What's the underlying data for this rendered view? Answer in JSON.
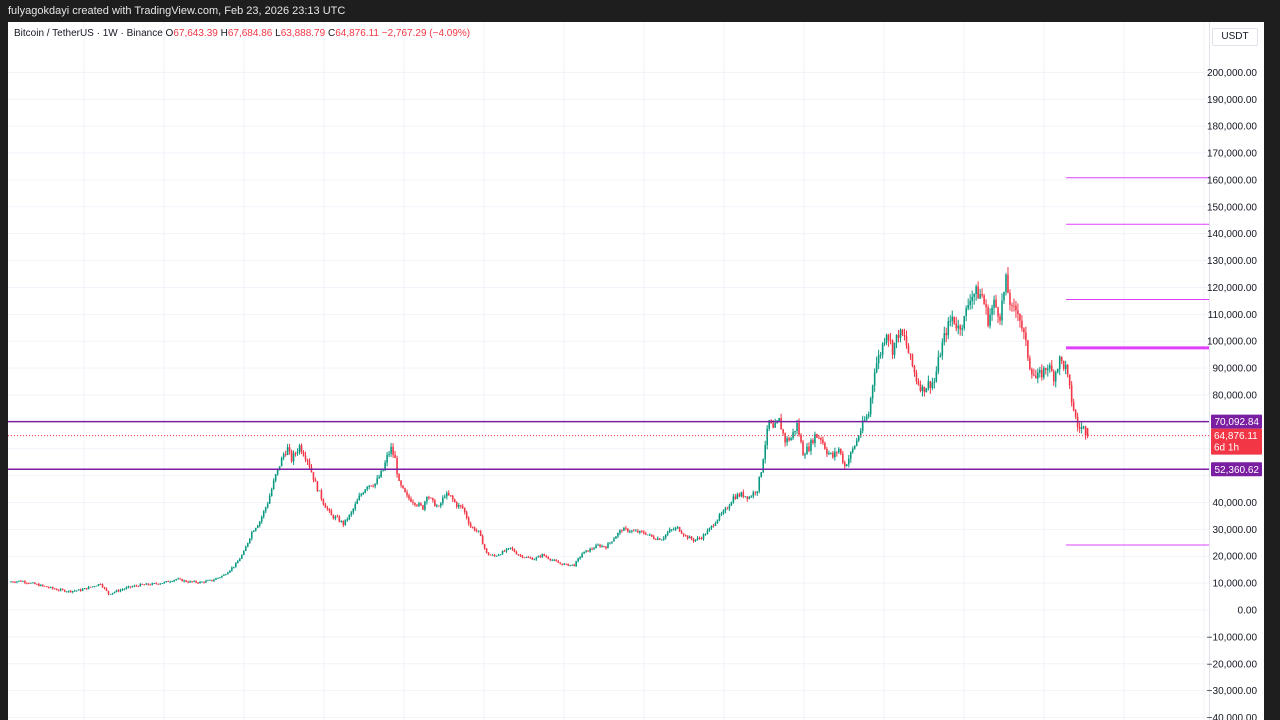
{
  "header": {
    "caption": "fulyagokdayi created with TradingView.com, Feb 23, 2026 23:13 UTC"
  },
  "legend": {
    "symbol": "Bitcoin / TetherUS · 1W · Binance",
    "open_label": "O",
    "open": "67,643.39",
    "high_label": "H",
    "high": "67,684.86",
    "low_label": "L",
    "low": "63,888.79",
    "close_label": "C",
    "close": "64,876.11",
    "change": "−2,767.29 (−4.09%)"
  },
  "axis": {
    "currency": "USDT"
  },
  "colors": {
    "up": "#089981",
    "down": "#f23645",
    "level_line": "#7b1fa2",
    "target_line": "#e040fb",
    "grid": "#f0f3fa",
    "price_line": "#f23645"
  },
  "chart_data": {
    "type": "candlestick",
    "symbol": "Bitcoin / TetherUS",
    "interval": "1W",
    "exchange": "Binance",
    "ylim": [
      -40000,
      210000
    ],
    "y_ticks": [
      "200,000.00",
      "190,000.00",
      "180,000.00",
      "170,000.00",
      "160,000.00",
      "150,000.00",
      "140,000.00",
      "130,000.00",
      "120,000.00",
      "110,000.00",
      "100,000.00",
      "90,000.00",
      "80,000.00",
      "60,000.00",
      "40,000.00",
      "30,000.00",
      "20,000.00",
      "10,000.00",
      "0.00",
      "−10,000.00",
      "−20,000.00",
      "−30,000.00",
      "−40,000.00"
    ],
    "y_tick_values": [
      200000,
      190000,
      180000,
      170000,
      160000,
      150000,
      140000,
      130000,
      120000,
      110000,
      100000,
      90000,
      80000,
      60000,
      40000,
      30000,
      20000,
      10000,
      0,
      -10000,
      -20000,
      -30000,
      -40000
    ],
    "last_price": {
      "value": 64876.11,
      "label": "64,876.11",
      "countdown": "6d 1h"
    },
    "horizontal_levels": [
      {
        "value": 70092.84,
        "label": "70,092.84",
        "style": "full"
      },
      {
        "value": 52360.62,
        "label": "52,360.62",
        "style": "full"
      }
    ],
    "target_levels": [
      {
        "value": 160800,
        "weight": "thin"
      },
      {
        "value": 143500,
        "weight": "thin"
      },
      {
        "value": 115500,
        "weight": "thin"
      },
      {
        "value": 97500,
        "weight": "thick"
      },
      {
        "value": 24200,
        "weight": "thin"
      }
    ],
    "close_path": [
      [
        0,
        10500
      ],
      [
        6,
        10800
      ],
      [
        12,
        9800
      ],
      [
        18,
        8700
      ],
      [
        24,
        7600
      ],
      [
        30,
        7000
      ],
      [
        36,
        7400
      ],
      [
        42,
        8800
      ],
      [
        46,
        9800
      ],
      [
        50,
        6000
      ],
      [
        54,
        7000
      ],
      [
        60,
        8400
      ],
      [
        66,
        9300
      ],
      [
        72,
        9600
      ],
      [
        78,
        10200
      ],
      [
        84,
        11500
      ],
      [
        90,
        10500
      ],
      [
        96,
        10300
      ],
      [
        102,
        11000
      ],
      [
        108,
        13000
      ],
      [
        114,
        17000
      ],
      [
        118,
        21500
      ],
      [
        122,
        29000
      ],
      [
        126,
        33000
      ],
      [
        130,
        40000
      ],
      [
        134,
        50000
      ],
      [
        138,
        58000
      ],
      [
        140,
        60000
      ],
      [
        142,
        56000
      ],
      [
        146,
        61000
      ],
      [
        150,
        56000
      ],
      [
        154,
        47000
      ],
      [
        158,
        40000
      ],
      [
        160,
        37500
      ],
      [
        162,
        35000
      ],
      [
        165,
        34000
      ],
      [
        168,
        32000
      ],
      [
        172,
        36000
      ],
      [
        176,
        42000
      ],
      [
        180,
        46500
      ],
      [
        184,
        47000
      ],
      [
        188,
        52000
      ],
      [
        190,
        57000
      ],
      [
        192,
        60000
      ],
      [
        194,
        56000
      ],
      [
        196,
        47000
      ],
      [
        200,
        42000
      ],
      [
        204,
        40000
      ],
      [
        208,
        38000
      ],
      [
        210,
        43000
      ],
      [
        213,
        40000
      ],
      [
        216,
        38000
      ],
      [
        219,
        43000
      ],
      [
        222,
        42000
      ],
      [
        225,
        39000
      ],
      [
        228,
        38000
      ],
      [
        232,
        31000
      ],
      [
        236,
        29000
      ],
      [
        240,
        21000
      ],
      [
        244,
        20000
      ],
      [
        248,
        21500
      ],
      [
        252,
        23000
      ],
      [
        256,
        20500
      ],
      [
        260,
        19500
      ],
      [
        264,
        19000
      ],
      [
        268,
        20500
      ],
      [
        272,
        19000
      ],
      [
        276,
        17500
      ],
      [
        280,
        16800
      ],
      [
        284,
        16700
      ],
      [
        288,
        21000
      ],
      [
        292,
        22500
      ],
      [
        296,
        24000
      ],
      [
        300,
        23500
      ],
      [
        304,
        26800
      ],
      [
        308,
        30000
      ],
      [
        312,
        29500
      ],
      [
        316,
        29000
      ],
      [
        320,
        28500
      ],
      [
        324,
        26800
      ],
      [
        328,
        26500
      ],
      [
        332,
        29500
      ],
      [
        336,
        30500
      ],
      [
        340,
        27500
      ],
      [
        344,
        26000
      ],
      [
        348,
        27000
      ],
      [
        352,
        30000
      ],
      [
        356,
        34000
      ],
      [
        360,
        37000
      ],
      [
        364,
        42000
      ],
      [
        368,
        43000
      ],
      [
        372,
        42000
      ],
      [
        376,
        45000
      ],
      [
        378,
        52000
      ],
      [
        380,
        62000
      ],
      [
        382,
        70000
      ],
      [
        384,
        67000
      ],
      [
        387,
        70500
      ],
      [
        390,
        63000
      ],
      [
        393,
        64000
      ],
      [
        396,
        69000
      ],
      [
        399,
        58500
      ],
      [
        402,
        60500
      ],
      [
        405,
        65000
      ],
      [
        408,
        64000
      ],
      [
        411,
        59000
      ],
      [
        414,
        57000
      ],
      [
        417,
        60000
      ],
      [
        420,
        53500
      ],
      [
        423,
        58000
      ],
      [
        426,
        63000
      ],
      [
        429,
        69000
      ],
      [
        432,
        73000
      ],
      [
        435,
        90000
      ],
      [
        438,
        96000
      ],
      [
        441,
        104000
      ],
      [
        444,
        97000
      ],
      [
        447,
        103000
      ],
      [
        450,
        101000
      ],
      [
        453,
        93000
      ],
      [
        456,
        86000
      ],
      [
        459,
        82000
      ],
      [
        462,
        84000
      ],
      [
        465,
        85000
      ],
      [
        468,
        96000
      ],
      [
        471,
        104000
      ],
      [
        474,
        109000
      ],
      [
        477,
        105000
      ],
      [
        480,
        108000
      ],
      [
        483,
        117000
      ],
      [
        486,
        118000
      ],
      [
        489,
        117000
      ],
      [
        492,
        108000
      ],
      [
        495,
        114000
      ],
      [
        498,
        110000
      ],
      [
        501,
        122000
      ],
      [
        504,
        111000
      ],
      [
        507,
        112000
      ],
      [
        510,
        102000
      ],
      [
        513,
        91000
      ],
      [
        516,
        86000
      ],
      [
        519,
        88000
      ],
      [
        522,
        91000
      ],
      [
        525,
        87000
      ],
      [
        528,
        93000
      ],
      [
        531,
        90000
      ],
      [
        534,
        78000
      ],
      [
        537,
        68000
      ],
      [
        540,
        67600
      ],
      [
        542,
        64876
      ]
    ]
  }
}
